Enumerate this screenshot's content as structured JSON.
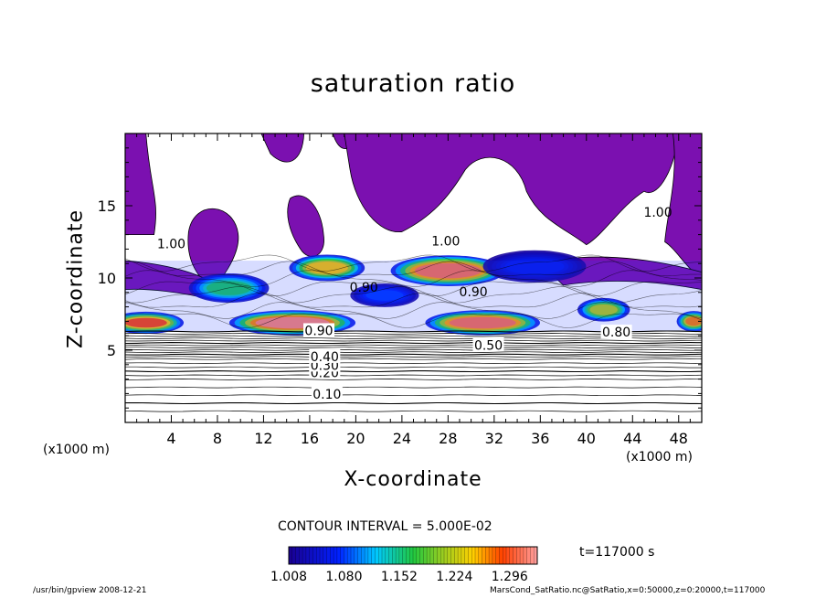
{
  "chart_data": {
    "type": "heatmap",
    "title": "saturation ratio",
    "xlabel": "X-coordinate",
    "ylabel": "Z-coordinate",
    "x_unit": "(x1000 m)",
    "y_unit": "(x1000 m)",
    "xlim": [
      0,
      50
    ],
    "ylim": [
      0,
      20
    ],
    "x_ticks": [
      4,
      8,
      12,
      16,
      20,
      24,
      28,
      32,
      36,
      40,
      44,
      48
    ],
    "y_ticks": [
      5,
      10,
      15
    ],
    "contour_interval_text": "CONTOUR INTERVAL = 5.000E-02",
    "time_text": "t=117000 s",
    "colorbar": {
      "min": 1.008,
      "max": 1.332,
      "tick_values": [
        1.008,
        1.08,
        1.152,
        1.224,
        1.296
      ],
      "tick_labels": [
        "1.008",
        "1.080",
        "1.152",
        "1.224",
        "1.296"
      ]
    },
    "contour_labels": [
      {
        "text": "0.10",
        "x": 17.5,
        "z": 1.9
      },
      {
        "text": "0.20",
        "x": 17.3,
        "z": 3.4
      },
      {
        "text": "0.30",
        "x": 17.3,
        "z": 3.9
      },
      {
        "text": "0.40",
        "x": 17.3,
        "z": 4.5
      },
      {
        "text": "0.50",
        "x": 31.5,
        "z": 5.3
      },
      {
        "text": "0.80",
        "x": 42.6,
        "z": 6.2
      },
      {
        "text": "0.90",
        "x": 16.8,
        "z": 6.3
      },
      {
        "text": "0.90",
        "x": 20.7,
        "z": 9.3
      },
      {
        "text": "0.90",
        "x": 30.2,
        "z": 9.0
      },
      {
        "text": "1.00",
        "x": 4.0,
        "z": 12.3
      },
      {
        "text": "1.00",
        "x": 27.8,
        "z": 12.5
      },
      {
        "text": "1.00",
        "x": 46.2,
        "z": 14.5
      }
    ],
    "supersaturated_bands": [
      {
        "x": 14.5,
        "z": 6.9,
        "rx": 5.0,
        "rz": 0.55,
        "peak": 1.32
      },
      {
        "x": 1.8,
        "z": 6.9,
        "rx": 2.8,
        "rz": 0.45,
        "peak": 1.29
      },
      {
        "x": 31.0,
        "z": 6.9,
        "rx": 4.5,
        "rz": 0.55,
        "peak": 1.31
      },
      {
        "x": 28.0,
        "z": 10.5,
        "rx": 4.5,
        "rz": 0.75,
        "peak": 1.31
      },
      {
        "x": 17.5,
        "z": 10.7,
        "rx": 2.8,
        "rz": 0.6,
        "peak": 1.25
      },
      {
        "x": 9.0,
        "z": 9.3,
        "rx": 3.0,
        "rz": 0.7,
        "peak": 1.16
      },
      {
        "x": 49.3,
        "z": 7.0,
        "rx": 1.0,
        "rz": 0.4,
        "peak": 1.27
      },
      {
        "x": 41.5,
        "z": 7.8,
        "rx": 1.8,
        "rz": 0.5,
        "peak": 1.22
      },
      {
        "x": 22.5,
        "z": 8.8,
        "rx": 2.5,
        "rz": 0.5,
        "peak": 1.08
      },
      {
        "x": 35.5,
        "z": 10.8,
        "rx": 4.0,
        "rz": 0.8,
        "peak": 1.06
      }
    ]
  },
  "footer": {
    "left": "/usr/bin/gpview   2008-12-21",
    "right": "MarsCond_SatRatio.nc@SatRatio,x=0:50000,z=0:20000,t=117000"
  }
}
